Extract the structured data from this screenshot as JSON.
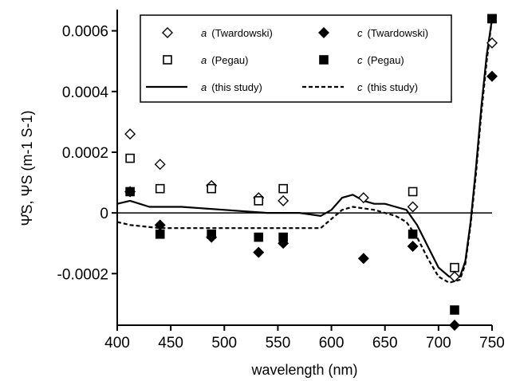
{
  "chart_data": {
    "type": "scatter",
    "xlabel": "wavelength  (nm)",
    "ylabel": "Ψ̂S, ΨS (m-1 S-1)",
    "xlim": [
      400,
      750
    ],
    "ylim": [
      -0.00037,
      0.00067
    ],
    "x_ticks": [
      400,
      450,
      500,
      550,
      600,
      650,
      700,
      750
    ],
    "x_tick_labels": [
      "400",
      "450",
      "500",
      "550",
      "600",
      "650",
      "700",
      "750"
    ],
    "y_ticks": [
      -0.0002,
      0,
      0.0002,
      0.0004,
      0.0006
    ],
    "y_tick_labels": [
      "-0.0002",
      "0",
      "0.0002",
      "0.0004",
      "0.0006"
    ],
    "zero_line": true,
    "legend_position": "top",
    "series": [
      {
        "name": "a (Twardowski)",
        "legend_italic": "a",
        "legend_rest": "(Twardowski)",
        "marker": "diamond-open",
        "x": [
          412,
          440,
          488,
          532,
          555,
          630,
          676,
          715,
          750
        ],
        "y": [
          0.00026,
          0.00016,
          9e-05,
          5e-05,
          4e-05,
          5e-05,
          2e-05,
          -0.00021,
          0.00056
        ]
      },
      {
        "name": "c (Twardowski)",
        "legend_italic": "c",
        "legend_rest": "(Twardowski)",
        "marker": "diamond-filled",
        "x": [
          412,
          440,
          488,
          532,
          555,
          630,
          676,
          715,
          750
        ],
        "y": [
          7e-05,
          -4e-05,
          -8e-05,
          -0.00013,
          -0.0001,
          -0.00015,
          -0.00011,
          -0.00037,
          0.00045
        ]
      },
      {
        "name": "a (Pegau)",
        "legend_italic": "a",
        "legend_rest": "(Pegau)",
        "marker": "square-open",
        "x": [
          412,
          440,
          488,
          532,
          555,
          676,
          715,
          750
        ],
        "y": [
          0.00018,
          8e-05,
          8e-05,
          4e-05,
          8e-05,
          7e-05,
          -0.00018,
          0.00064
        ]
      },
      {
        "name": "c (Pegau)",
        "legend_italic": "c",
        "legend_rest": "(Pegau)",
        "marker": "square-filled",
        "x": [
          412,
          440,
          488,
          532,
          555,
          676,
          715,
          750
        ],
        "y": [
          7e-05,
          -7e-05,
          -7e-05,
          -8e-05,
          -8e-05,
          -7e-05,
          -0.00032,
          0.00064
        ]
      },
      {
        "name": "a (this study)",
        "legend_italic": "a",
        "legend_rest": "(this study)",
        "marker": "line-solid",
        "x": [
          400,
          412,
          430,
          460,
          500,
          540,
          570,
          590,
          600,
          610,
          620,
          630,
          640,
          650,
          660,
          670,
          680,
          690,
          700,
          710,
          720,
          725,
          730,
          735,
          740,
          745,
          750
        ],
        "y": [
          3e-05,
          4e-05,
          2e-05,
          2e-05,
          1e-05,
          0.0,
          0.0,
          -1e-05,
          1e-05,
          5e-05,
          6e-05,
          4e-05,
          3e-05,
          3e-05,
          2e-05,
          1e-05,
          -4e-05,
          -0.00011,
          -0.00018,
          -0.00021,
          -0.00021,
          -0.00016,
          -3e-05,
          0.00015,
          0.00035,
          0.00052,
          0.00064
        ]
      },
      {
        "name": "c (this study)",
        "legend_italic": "c",
        "legend_rest": "(this study)",
        "marker": "line-dashed",
        "x": [
          400,
          412,
          440,
          470,
          500,
          540,
          570,
          590,
          600,
          610,
          620,
          640,
          660,
          670,
          680,
          690,
          700,
          710,
          720,
          725,
          730,
          735,
          740,
          745,
          750
        ],
        "y": [
          -3e-05,
          -4e-05,
          -5e-05,
          -5e-05,
          -5e-05,
          -5e-05,
          -5e-05,
          -5e-05,
          -2e-05,
          1e-05,
          2e-05,
          1e-05,
          -1e-05,
          -3e-05,
          -8e-05,
          -0.00015,
          -0.00021,
          -0.00023,
          -0.00022,
          -0.00017,
          -4e-05,
          0.00013,
          0.00033,
          0.0005,
          0.00064
        ]
      }
    ]
  }
}
